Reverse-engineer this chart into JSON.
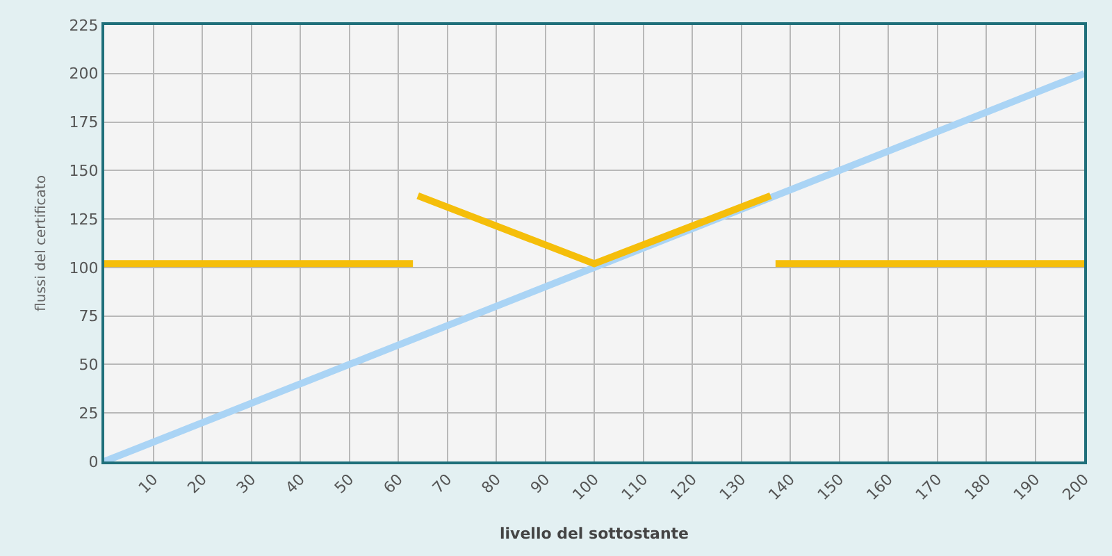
{
  "chart_data": {
    "type": "line",
    "xlabel": "livello del sottostante",
    "ylabel": "flussi del certificato",
    "xlim": [
      0,
      200
    ],
    "xticks": [
      10,
      20,
      30,
      40,
      50,
      60,
      70,
      80,
      90,
      100,
      110,
      120,
      130,
      140,
      150,
      160,
      170,
      180,
      190,
      200
    ],
    "ylim": [
      0,
      225
    ],
    "yticks": [
      0,
      25,
      50,
      75,
      100,
      125,
      150,
      175,
      200,
      225
    ],
    "grid": true,
    "marker": "none",
    "line_style": "solid",
    "series": [
      {
        "color": "#aad4f5",
        "x": [
          0,
          200
        ],
        "values": [
          0,
          200
        ]
      },
      {
        "color": "#f5be0a",
        "x": [
          0,
          63,
          63.5,
          64,
          100,
          136,
          136.5,
          137,
          200
        ],
        "values": [
          102,
          102,
          null,
          137,
          102,
          137,
          null,
          102,
          102
        ]
      }
    ]
  }
}
